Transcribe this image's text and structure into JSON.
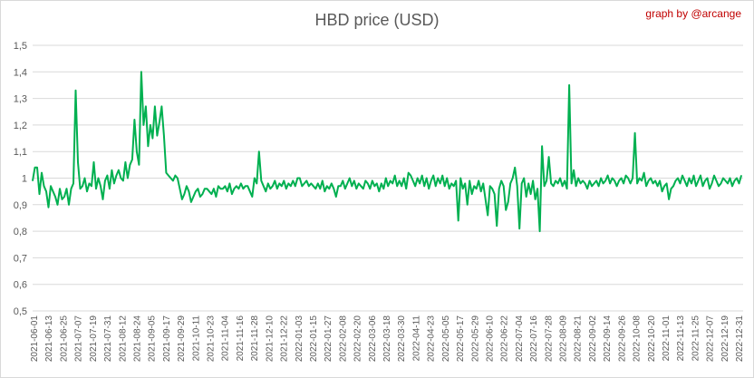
{
  "chart_data": {
    "type": "line",
    "title": "HBD price (USD)",
    "credit": "graph by @arcange",
    "xlabel": "",
    "ylabel": "",
    "ylim": [
      0.5,
      1.5
    ],
    "yticks": [
      "0,5",
      "0,6",
      "0,7",
      "0,8",
      "0,9",
      "1",
      "1,1",
      "1,2",
      "1,3",
      "1,4",
      "1,5"
    ],
    "grid": true,
    "legend": "none",
    "line_color": "#00b050",
    "xticks": [
      "2021-06-01",
      "2021-06-13",
      "2021-06-25",
      "2021-07-07",
      "2021-07-19",
      "2021-07-31",
      "2021-08-12",
      "2021-08-24",
      "2021-09-05",
      "2021-09-17",
      "2021-09-29",
      "2021-10-11",
      "2021-10-23",
      "2021-11-04",
      "2021-11-16",
      "2021-11-28",
      "2021-12-10",
      "2021-12-22",
      "2022-01-03",
      "2022-01-15",
      "2022-01-27",
      "2022-02-08",
      "2022-02-20",
      "2022-03-06",
      "2022-03-18",
      "2022-03-30",
      "2022-04-11",
      "2022-04-23",
      "2022-05-05",
      "2022-05-17",
      "2022-05-29",
      "2022-06-10",
      "2022-06-22",
      "2022-07-04",
      "2022-07-16",
      "2022-07-28",
      "2022-08-09",
      "2022-08-21",
      "2022-09-02",
      "2022-09-14",
      "2022-09-26",
      "2022-10-08",
      "2022-10-20",
      "2022-11-01",
      "2022-11-13",
      "2022-11-25",
      "2022-12-07",
      "2022-12-19",
      "2022-12-31"
    ],
    "series": [
      {
        "values": [
          0.99,
          1.04,
          1.04,
          0.94,
          1.02,
          0.97,
          0.95,
          0.89,
          0.97,
          0.95,
          0.93,
          0.9,
          0.96,
          0.92,
          0.93,
          0.96,
          0.9,
          0.96,
          0.98,
          1.33,
          1.06,
          0.96,
          0.97,
          1.0,
          0.95,
          0.98,
          0.97,
          1.06,
          0.96,
          1.0,
          0.97,
          0.92,
          0.99,
          1.01,
          0.96,
          1.03,
          0.98,
          1.01,
          1.03,
          1.0,
          0.99,
          1.06,
          1.0,
          1.05,
          1.07,
          1.22,
          1.1,
          1.05,
          1.4,
          1.2,
          1.27,
          1.12,
          1.2,
          1.15,
          1.27,
          1.16,
          1.21,
          1.27,
          1.16,
          1.02,
          1.01,
          1.0,
          0.99,
          1.01,
          1.0,
          0.96,
          0.92,
          0.94,
          0.97,
          0.95,
          0.91,
          0.93,
          0.95,
          0.96,
          0.93,
          0.94,
          0.96,
          0.96,
          0.95,
          0.94,
          0.96,
          0.93,
          0.97,
          0.96,
          0.96,
          0.97,
          0.95,
          0.98,
          0.94,
          0.96,
          0.97,
          0.96,
          0.98,
          0.96,
          0.97,
          0.97,
          0.95,
          0.93,
          1.0,
          0.98,
          1.1,
          0.99,
          0.97,
          0.95,
          0.98,
          0.96,
          0.97,
          0.99,
          0.96,
          0.98,
          0.97,
          0.99,
          0.96,
          0.98,
          0.97,
          0.99,
          0.97,
          1.0,
          1.0,
          0.97,
          0.98,
          0.99,
          0.97,
          0.98,
          0.97,
          0.96,
          0.98,
          0.96,
          0.99,
          0.95,
          0.97,
          0.96,
          0.98,
          0.96,
          0.93,
          0.97,
          0.97,
          0.99,
          0.96,
          0.98,
          1.0,
          0.97,
          0.99,
          0.96,
          0.98,
          0.97,
          0.96,
          0.99,
          0.98,
          0.96,
          0.99,
          0.97,
          0.98,
          0.95,
          0.98,
          0.96,
          1.0,
          0.97,
          0.99,
          0.98,
          1.01,
          0.97,
          0.99,
          0.97,
          1.0,
          0.96,
          1.02,
          1.01,
          0.99,
          0.97,
          1.0,
          0.98,
          1.01,
          0.97,
          1.0,
          0.96,
          0.99,
          1.01,
          0.97,
          1.0,
          0.98,
          1.01,
          0.97,
          1.0,
          0.96,
          0.98,
          0.97,
          0.99,
          0.84,
          1.0,
          0.96,
          0.98,
          0.9,
          0.99,
          0.94,
          0.97,
          0.96,
          0.99,
          0.95,
          0.98,
          0.92,
          0.86,
          0.97,
          0.96,
          0.94,
          0.82,
          0.96,
          0.99,
          0.97,
          0.88,
          0.91,
          0.98,
          1.0,
          1.04,
          0.97,
          0.81,
          0.98,
          1.0,
          0.93,
          0.98,
          0.94,
          0.99,
          0.92,
          0.96,
          0.8,
          1.12,
          0.97,
          0.99,
          1.08,
          0.98,
          0.97,
          0.99,
          0.98,
          1.0,
          0.97,
          0.99,
          0.96,
          1.35,
          0.98,
          1.03,
          0.97,
          1.0,
          0.98,
          0.99,
          0.98,
          0.96,
          0.99,
          0.97,
          0.98,
          0.99,
          0.97,
          1.0,
          0.98,
          0.99,
          1.01,
          0.98,
          1.0,
          0.99,
          0.97,
          0.99,
          1.0,
          0.98,
          1.01,
          1.0,
          0.98,
          1.0,
          1.17,
          0.98,
          1.0,
          0.99,
          1.02,
          0.97,
          0.99,
          1.0,
          0.98,
          0.99,
          0.97,
          0.99,
          0.95,
          0.97,
          0.98,
          0.92,
          0.96,
          0.97,
          0.99,
          1.0,
          0.98,
          1.01,
          0.99,
          0.97,
          1.0,
          0.98,
          1.01,
          0.97,
          0.99,
          1.01,
          0.97,
          0.99,
          1.0,
          0.96,
          0.98,
          1.01,
          0.99,
          0.97,
          0.98,
          1.0,
          0.99,
          0.98,
          1.0,
          0.97,
          0.99,
          1.0,
          0.98,
          1.01
        ]
      }
    ]
  }
}
